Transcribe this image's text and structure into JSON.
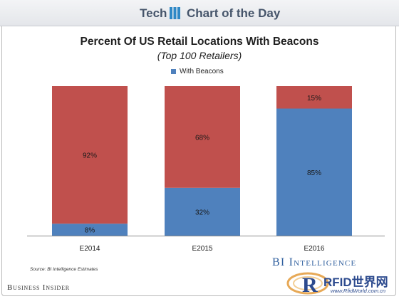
{
  "header": {
    "left": "Tech",
    "right": "Chart of the Day"
  },
  "footer": {
    "source": "Source: BI Intelligence Estimates",
    "brand_left": "Business Insider",
    "brand_right": "BI Intelligence"
  },
  "watermark": {
    "text": "RFID世界网",
    "url": "www.RfidWorld.com.cn"
  },
  "colors": {
    "with": "#4f81bd",
    "without": "#c0504d",
    "header_icon": "#2e88c6"
  },
  "chart_data": {
    "type": "bar",
    "stacked": true,
    "title": "Percent Of US Retail Locations With Beacons",
    "subtitle": "(Top 100 Retailers)",
    "categories": [
      "E2014",
      "E2015",
      "E2016"
    ],
    "series": [
      {
        "name": "With Beacons",
        "values": [
          8,
          32,
          85
        ],
        "labels": [
          "8%",
          "32%",
          "85%"
        ]
      },
      {
        "name": "",
        "values": [
          92,
          68,
          15
        ],
        "labels": [
          "92%",
          "68%",
          "15%"
        ]
      }
    ],
    "ylim": [
      0,
      100
    ],
    "legend": "top-center",
    "grid": false
  }
}
